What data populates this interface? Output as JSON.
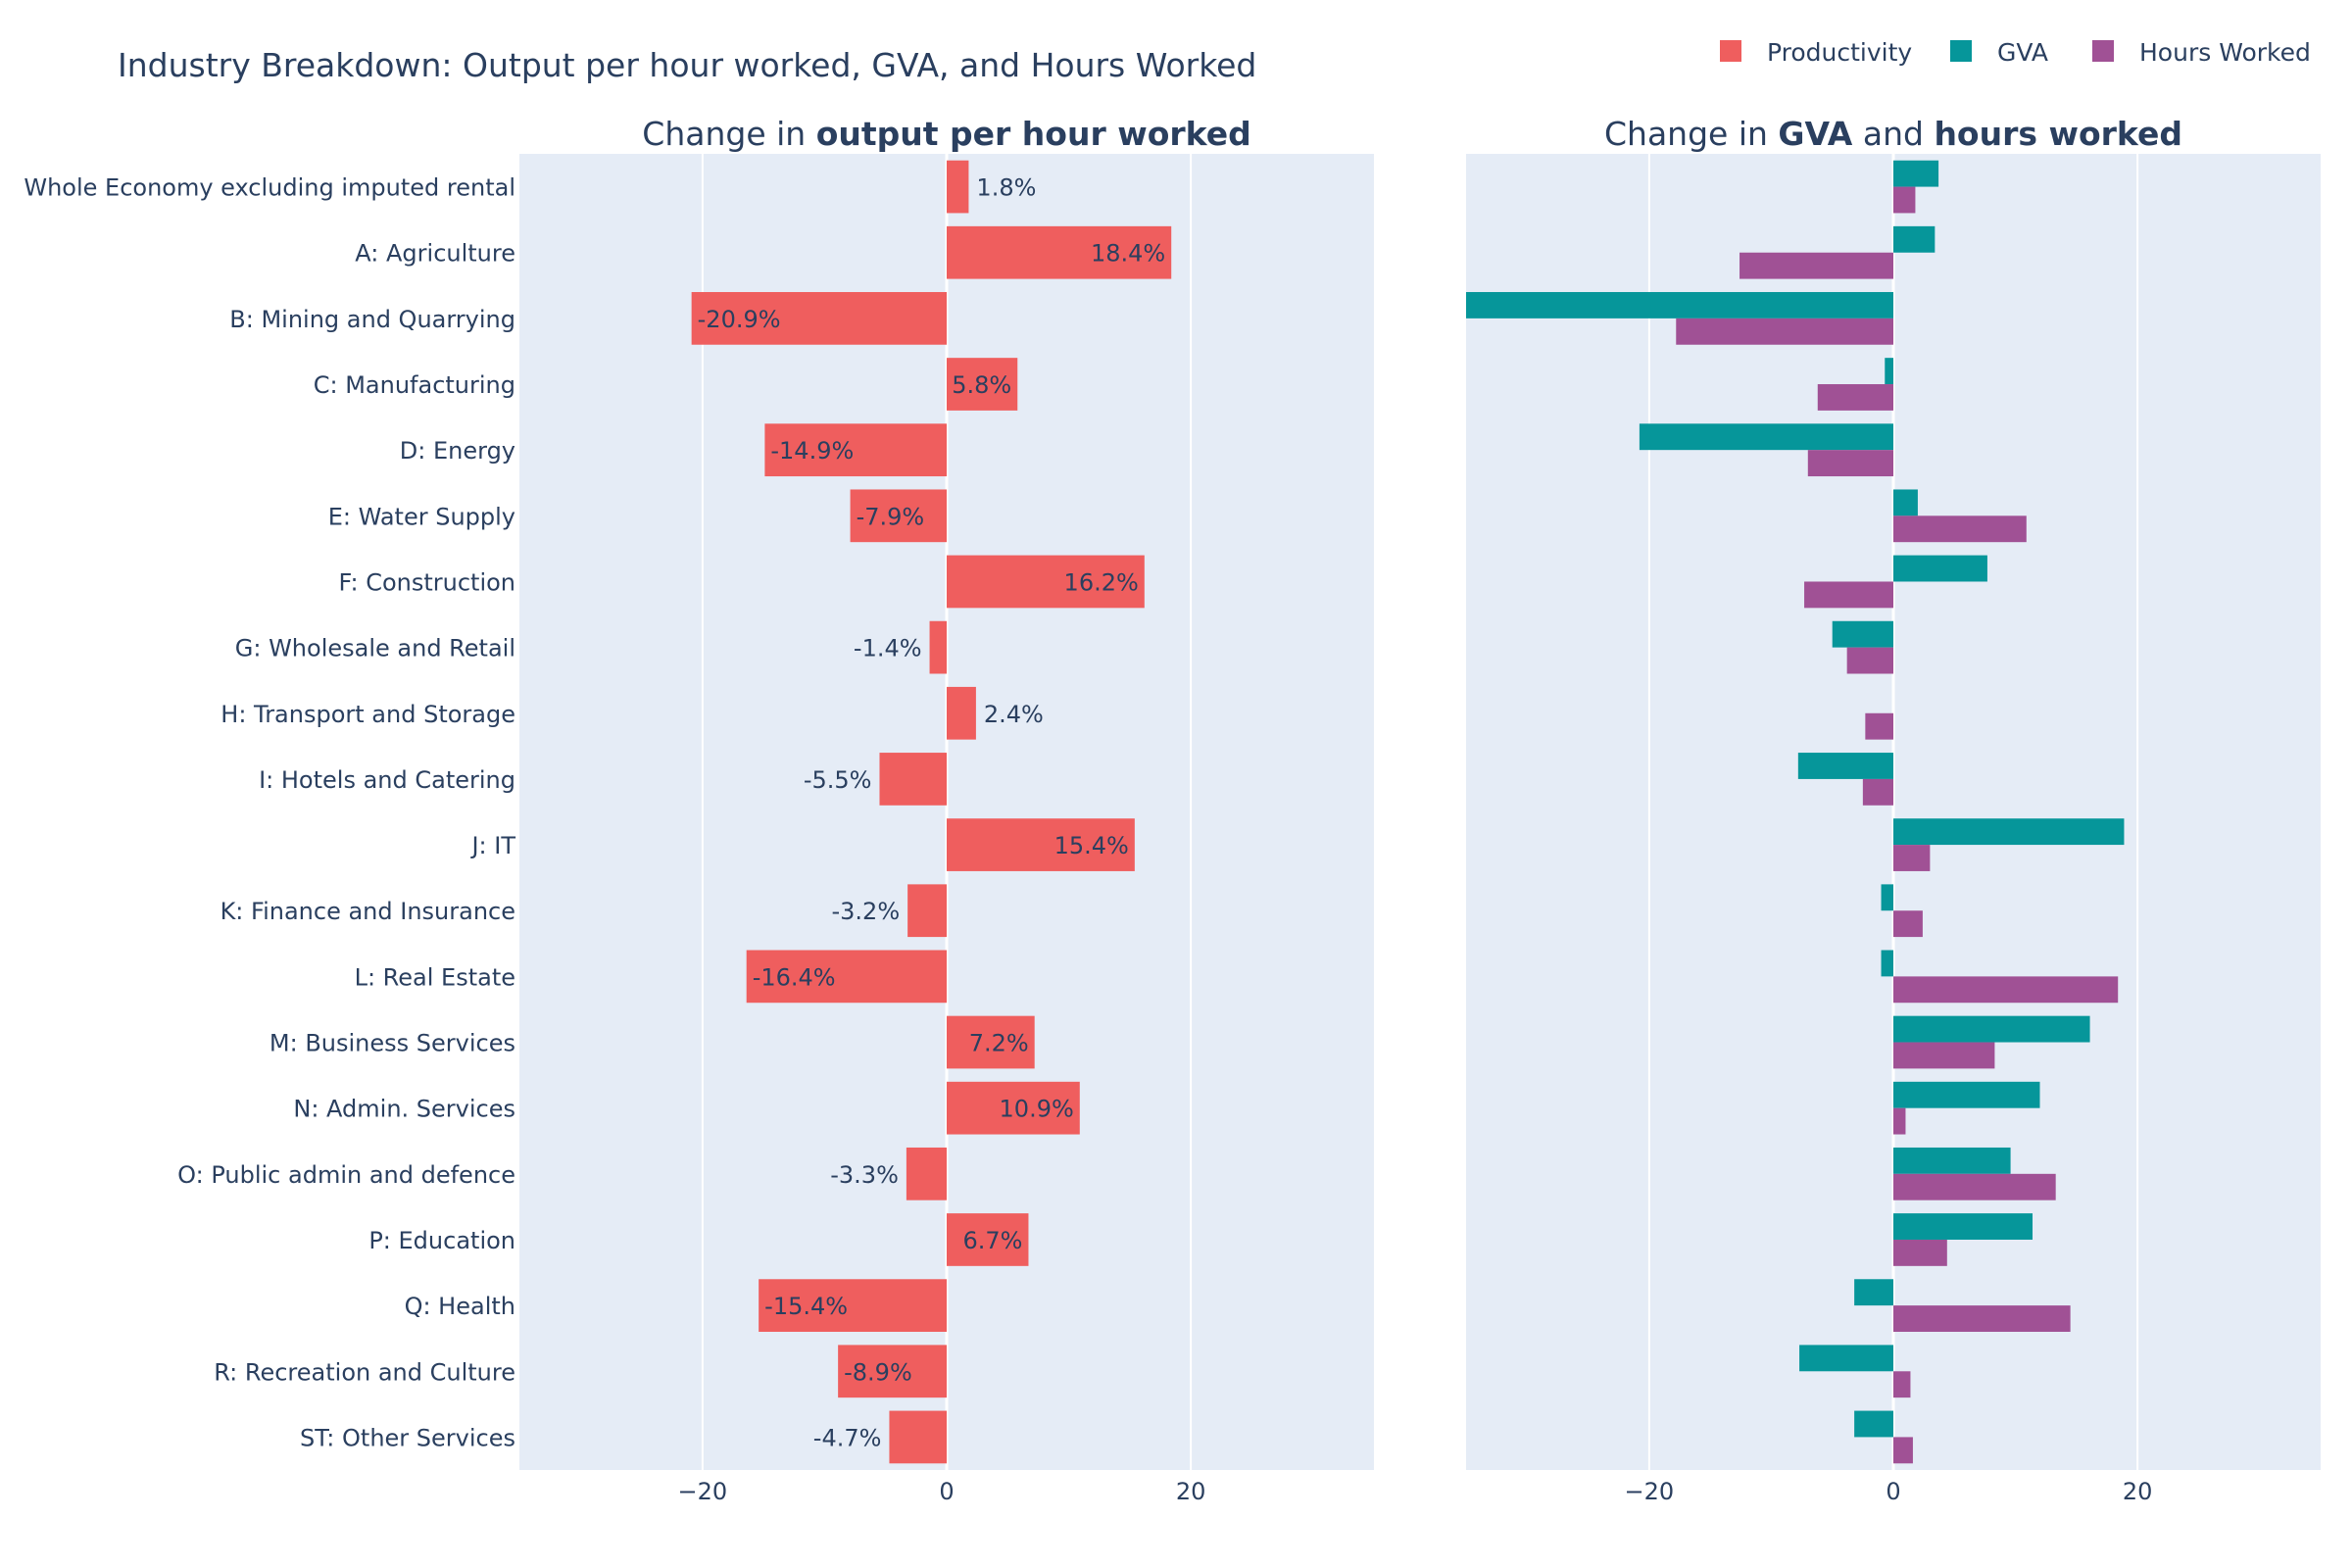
{
  "title": "Industry Breakdown: Output per hour worked, GVA, and Hours Worked",
  "legend": [
    {
      "name": "Productivity",
      "color": "#ef5e5e"
    },
    {
      "name": "GVA",
      "color": "#06969a"
    },
    {
      "name": "Hours Worked",
      "color": "#a05195"
    }
  ],
  "colors": {
    "plot_bg": "#e5ecf6",
    "grid": "#ffffff",
    "text": "#2a3f5f"
  },
  "chart_data": [
    {
      "type": "bar",
      "orientation": "horizontal",
      "subtitle_parts": [
        {
          "text": "Change in ",
          "bold": false
        },
        {
          "text": "output per hour worked",
          "bold": true
        }
      ],
      "xlim": [
        -35,
        35
      ],
      "xticks": [
        -20,
        0,
        20
      ],
      "xtick_labels": [
        "−20",
        "0",
        "20"
      ],
      "grid": true,
      "categories": [
        "Whole Economy excluding imputed rental",
        "A: Agriculture",
        "B: Mining and Quarrying",
        "C: Manufacturing",
        "D: Energy",
        "E: Water Supply",
        "F: Construction",
        "G: Wholesale and Retail",
        "H: Transport and Storage",
        "I: Hotels and Catering",
        "J: IT",
        "K: Finance and Insurance",
        "L: Real Estate",
        "M: Business Services",
        "N: Admin. Services",
        "O: Public admin and defence",
        "P: Education",
        "Q: Health",
        "R: Recreation and Culture",
        "ST: Other Services"
      ],
      "series": [
        {
          "name": "Productivity",
          "values": [
            1.8,
            18.4,
            -20.9,
            5.8,
            -14.9,
            -7.9,
            16.2,
            -1.4,
            2.4,
            -5.5,
            15.4,
            -3.2,
            -16.4,
            7.2,
            10.9,
            -3.3,
            6.7,
            -15.4,
            -8.9,
            -4.7
          ],
          "labels": [
            "1.8%",
            "18.4%",
            "-20.9%",
            "5.8%",
            "-14.9%",
            "-7.9%",
            "16.2%",
            "-1.4%",
            "2.4%",
            "-5.5%",
            "15.4%",
            "-3.2%",
            "-16.4%",
            "7.2%",
            "10.9%",
            "-3.3%",
            "6.7%",
            "-15.4%",
            "-8.9%",
            "-4.7%"
          ]
        }
      ]
    },
    {
      "type": "bar",
      "orientation": "horizontal",
      "subtitle_parts": [
        {
          "text": "Change in ",
          "bold": false
        },
        {
          "text": "GVA",
          "bold": true
        },
        {
          "text": " and ",
          "bold": false
        },
        {
          "text": "hours worked",
          "bold": true
        }
      ],
      "xlim": [
        -35,
        35
      ],
      "xticks": [
        -20,
        0,
        20
      ],
      "xtick_labels": [
        "−20",
        "0",
        "20"
      ],
      "grid": true,
      "series": [
        {
          "name": "GVA",
          "values": [
            3.7,
            3.4,
            -35.0,
            -0.7,
            -20.8,
            2.0,
            7.7,
            -5.0,
            0.0,
            -7.8,
            18.9,
            -1.0,
            -1.0,
            16.1,
            12.0,
            9.6,
            11.4,
            -3.2,
            -7.7,
            -3.2
          ]
        },
        {
          "name": "Hours Worked",
          "values": [
            1.8,
            -12.6,
            -17.8,
            -6.2,
            -7.0,
            10.9,
            -7.3,
            -3.8,
            -2.3,
            -2.5,
            3.0,
            2.4,
            18.4,
            8.3,
            1.0,
            13.3,
            4.4,
            14.5,
            1.4,
            1.6
          ]
        }
      ]
    }
  ]
}
